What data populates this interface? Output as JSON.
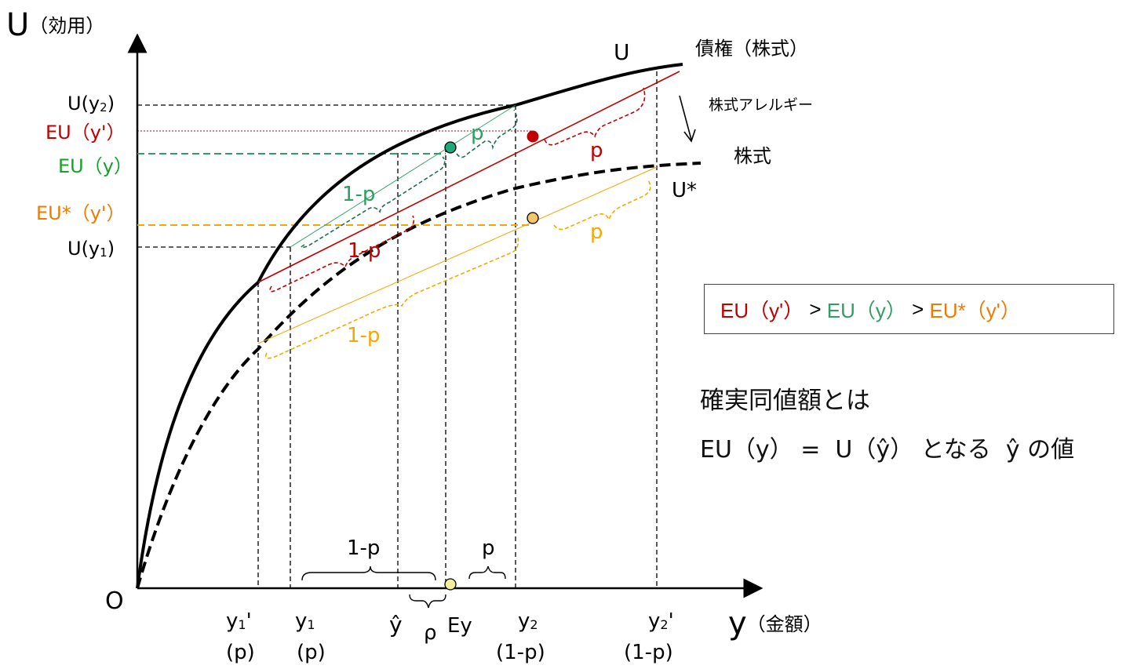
{
  "axes": {
    "y_title_main": "U",
    "y_title_sub": "（効用）",
    "x_title_main": "y",
    "x_title_sub": "（金額）",
    "origin": "O"
  },
  "curves": {
    "u_label": "U",
    "bond_label": "債権（株式）",
    "aversion_label": "株式アレルギー",
    "stock_label": "株式",
    "ustar_label": "U*"
  },
  "y_labels": {
    "u_y2": "U(y2)",
    "eu_yprime": "EU（y'）",
    "eu_y": "EU（y）",
    "eustar_yprime": "EU*（y'）",
    "u_y1": "U(y1)"
  },
  "x_labels": {
    "y1p": "y1'",
    "y1p_prob": "(p)",
    "y1": "y1",
    "y1_prob": "(p)",
    "yhat": "ŷ",
    "rho": "ρ",
    "ey": "Ey",
    "y2": "y2",
    "y2_prob": "(1-p)",
    "y2p": "y2'",
    "y2p_prob": "(1-p)"
  },
  "brace_labels": {
    "green_p": "p",
    "green_1p": "1-p",
    "red_p": "p",
    "red_1p": "1-p",
    "orange_p": "p",
    "orange_1p": "1-p",
    "bottom_1p": "1-p",
    "bottom_p": "p"
  },
  "comparison": {
    "part1": "EU（y'）",
    "sep1": " > ",
    "part2": "EU（y）",
    "sep2": " > ",
    "part3": "EU*（y'）"
  },
  "note": {
    "line1": "確実同値額とは",
    "line2_a": "EU（y） =  U（ŷ） となる  ŷ の値"
  },
  "colors": {
    "red": "#c00000",
    "green": "#2e9e62",
    "green_label": "#13a12b",
    "orange": "#f2a900",
    "orange_label": "#f07a00",
    "black": "#000000"
  }
}
